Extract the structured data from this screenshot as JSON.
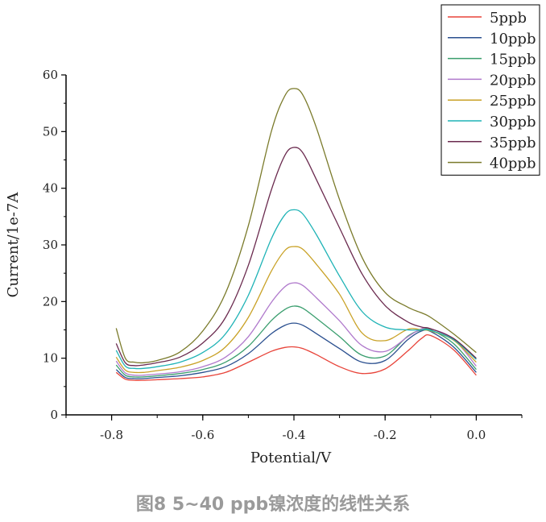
{
  "caption": "图8 5~40 ppb镍浓度的线性关系",
  "chart_data": {
    "type": "line",
    "xlabel": "Potential/V",
    "ylabel": "Current/1e-7A",
    "xlim": [
      -0.9,
      0.1
    ],
    "ylim": [
      0,
      60
    ],
    "xticks": [
      -0.8,
      -0.6,
      -0.4,
      -0.2,
      0.0
    ],
    "xtick_labels": [
      "-0.8",
      "-0.6",
      "-0.4",
      "-0.2",
      "0.0"
    ],
    "yticks": [
      0,
      10,
      20,
      30,
      40,
      50,
      60
    ],
    "ytick_labels": [
      "0",
      "10",
      "20",
      "30",
      "40",
      "50",
      "60"
    ],
    "legend_position": "top-right",
    "grid": false,
    "x": [
      -0.79,
      -0.77,
      -0.75,
      -0.73,
      -0.7,
      -0.65,
      -0.6,
      -0.55,
      -0.5,
      -0.45,
      -0.42,
      -0.4,
      -0.38,
      -0.35,
      -0.3,
      -0.25,
      -0.2,
      -0.15,
      -0.12,
      -0.1,
      -0.05,
      0.0
    ],
    "series": [
      {
        "name": "5ppb",
        "color": "#e8443a",
        "values": [
          7.5,
          6.3,
          6.1,
          6.1,
          6.2,
          6.4,
          6.7,
          7.5,
          9.3,
          11.2,
          11.9,
          12.0,
          11.7,
          10.6,
          8.5,
          7.3,
          8.1,
          11.3,
          13.5,
          14.0,
          11.5,
          7.0
        ]
      },
      {
        "name": "10ppb",
        "color": "#2a4f8f",
        "values": [
          8.0,
          6.6,
          6.4,
          6.4,
          6.6,
          6.9,
          7.5,
          8.5,
          10.8,
          14.3,
          15.8,
          16.2,
          15.8,
          14.3,
          11.7,
          9.3,
          9.6,
          13.3,
          14.8,
          14.7,
          12.0,
          7.5
        ]
      },
      {
        "name": "15ppb",
        "color": "#3a9e6e",
        "values": [
          8.8,
          7.0,
          6.7,
          6.7,
          6.9,
          7.3,
          8.0,
          9.3,
          12.1,
          16.6,
          18.6,
          19.2,
          18.8,
          17.0,
          13.8,
          10.5,
          10.4,
          13.9,
          15.0,
          15.0,
          12.6,
          8.0
        ]
      },
      {
        "name": "20ppb",
        "color": "#b07acc",
        "values": [
          9.5,
          7.4,
          7.0,
          7.0,
          7.2,
          7.6,
          8.5,
          10.2,
          13.8,
          19.8,
          22.6,
          23.3,
          22.8,
          20.6,
          16.6,
          12.2,
          11.2,
          13.8,
          15.2,
          15.2,
          13.4,
          8.6
        ]
      },
      {
        "name": "25ppb",
        "color": "#c9a227",
        "values": [
          10.2,
          7.9,
          7.5,
          7.5,
          7.8,
          8.4,
          9.6,
          12.0,
          17.2,
          25.3,
          29.0,
          29.7,
          29.2,
          26.5,
          21.3,
          14.4,
          13.1,
          15.1,
          15.0,
          14.8,
          13.2,
          9.3
        ]
      },
      {
        "name": "30ppb",
        "color": "#1fb3b6",
        "values": [
          11.4,
          8.6,
          8.2,
          8.2,
          8.5,
          9.3,
          11.0,
          14.3,
          21.1,
          31.0,
          35.3,
          36.2,
          35.4,
          31.7,
          24.5,
          18.2,
          15.5,
          15.0,
          15.0,
          14.9,
          13.3,
          9.8
        ]
      },
      {
        "name": "35ppb",
        "color": "#6b2b4f",
        "values": [
          12.6,
          9.2,
          8.7,
          8.8,
          9.2,
          10.2,
          12.7,
          17.2,
          26.4,
          39.6,
          45.8,
          47.2,
          46.2,
          41.4,
          33.0,
          24.8,
          19.3,
          16.4,
          15.5,
          15.2,
          13.5,
          10.0
        ]
      },
      {
        "name": "40ppb",
        "color": "#7a7a2a",
        "values": [
          15.3,
          10.0,
          9.3,
          9.2,
          9.6,
          11.1,
          14.8,
          21.5,
          33.4,
          49.9,
          56.3,
          57.6,
          56.4,
          50.5,
          38.0,
          27.7,
          21.6,
          19.0,
          18.0,
          17.2,
          14.3,
          11.0
        ]
      }
    ]
  }
}
